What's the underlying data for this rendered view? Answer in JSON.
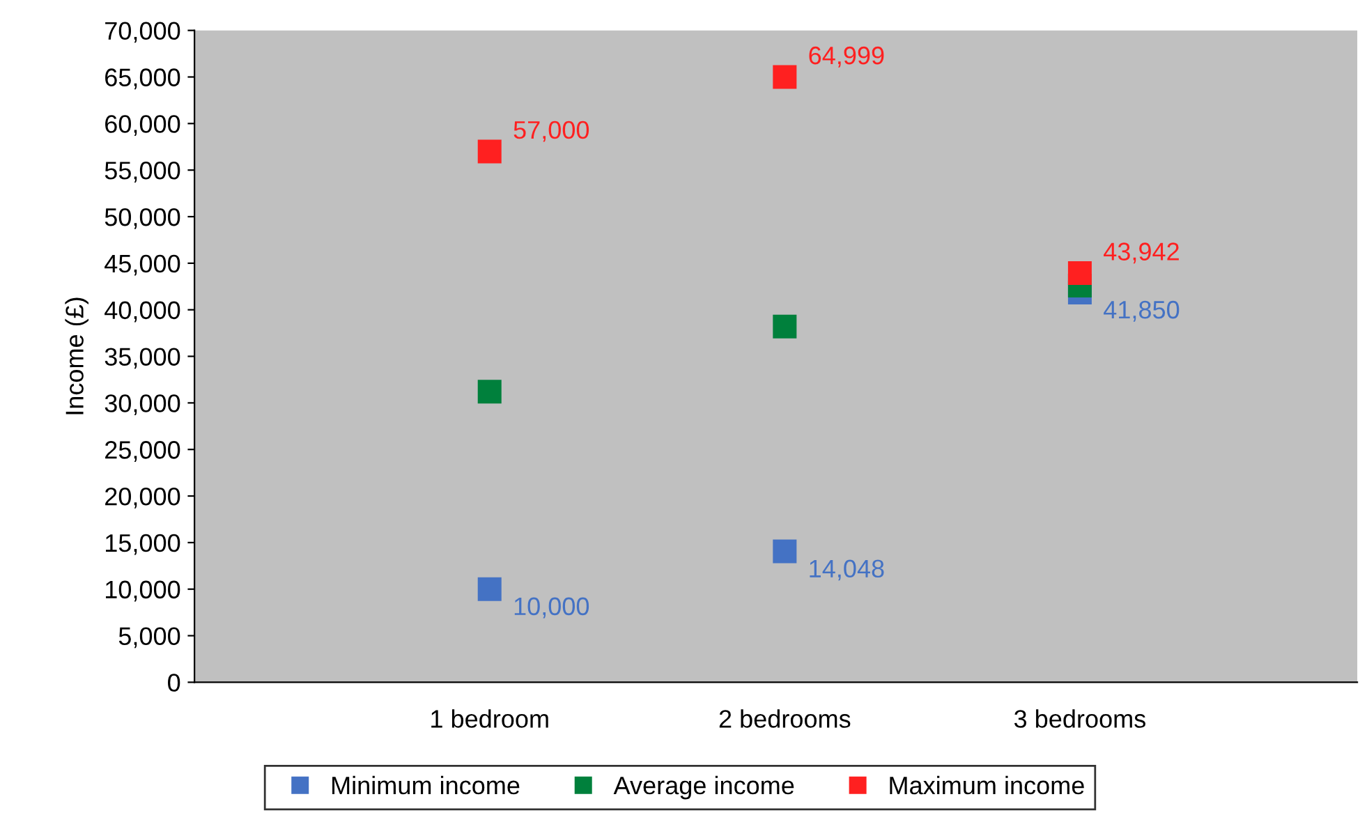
{
  "chart_data": {
    "type": "scatter",
    "ylabel": "Income (£)",
    "categories": [
      "1 bedroom",
      "2 bedrooms",
      "3 bedrooms"
    ],
    "series": [
      {
        "name": "Minimum income",
        "color": "#4472c4",
        "values": [
          10000,
          14048,
          41850
        ],
        "value_labels": [
          "10,000",
          "14,048",
          "41,850"
        ]
      },
      {
        "name": "Average income",
        "color": "#00803c",
        "values": [
          31200,
          38200,
          42600
        ]
      },
      {
        "name": "Maximum income",
        "color": "#ff2020",
        "values": [
          57000,
          64999,
          43942
        ],
        "value_labels": [
          "57,000",
          "64,999",
          "43,942"
        ]
      }
    ],
    "ylim": [
      0,
      70000
    ],
    "yticks": [
      {
        "value": 0,
        "label": "0"
      },
      {
        "value": 5000,
        "label": "5,000"
      },
      {
        "value": 10000,
        "label": "10,000"
      },
      {
        "value": 15000,
        "label": "15,000"
      },
      {
        "value": 20000,
        "label": "20,000"
      },
      {
        "value": 25000,
        "label": "25,000"
      },
      {
        "value": 30000,
        "label": "30,000"
      },
      {
        "value": 35000,
        "label": "35,000"
      },
      {
        "value": 40000,
        "label": "40,000"
      },
      {
        "value": 45000,
        "label": "45,000"
      },
      {
        "value": 50000,
        "label": "50,000"
      },
      {
        "value": 55000,
        "label": "55,000"
      },
      {
        "value": 60000,
        "label": "60,000"
      },
      {
        "value": 65000,
        "label": "65,000"
      },
      {
        "value": 70000,
        "label": "70,000"
      }
    ],
    "marker": "square",
    "grid": false,
    "legend": "bottom"
  }
}
